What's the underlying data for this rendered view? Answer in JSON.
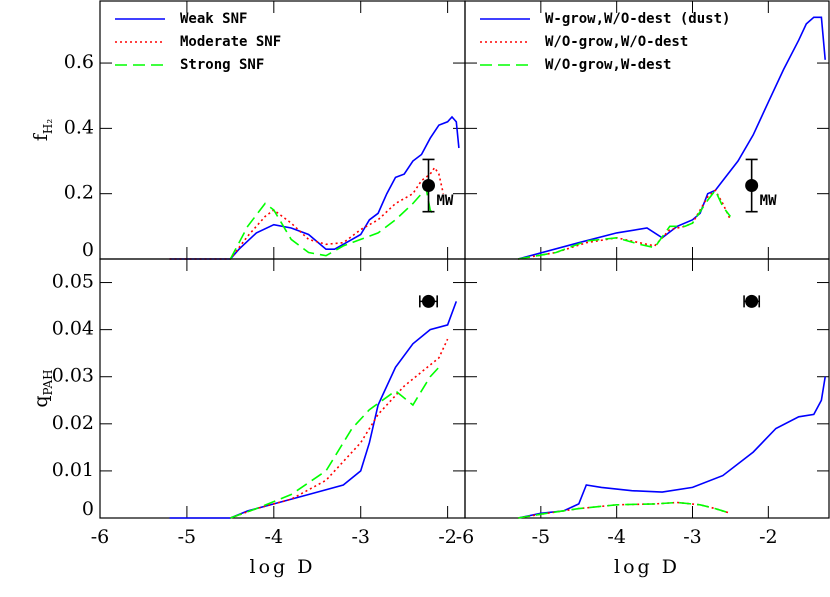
{
  "chart_data": [
    {
      "type": "line",
      "y_label": "f",
      "y_label_sub": "H₂",
      "xlim": [
        -6,
        -1.8
      ],
      "ylim": [
        0,
        0.79
      ],
      "xticks": [
        -6,
        -5,
        -4,
        -3,
        -2
      ],
      "yticks": [
        0,
        0.2,
        0.4,
        0.6
      ],
      "x_tick_labels": false,
      "y_tick_labels": true,
      "legend": "upper left",
      "series": [
        {
          "name": "Weak SNF",
          "color": "#0000ff",
          "style": "solid",
          "x": [
            -5.2,
            -4.5,
            -4.4,
            -4.2,
            -4.0,
            -3.8,
            -3.6,
            -3.4,
            -3.3,
            -3.1,
            -3.0,
            -2.9,
            -2.8,
            -2.7,
            -2.6,
            -2.5,
            -2.4,
            -2.3,
            -2.2,
            -2.1,
            -2.0,
            -1.95,
            -1.9,
            -1.87
          ],
          "values": [
            0,
            0,
            0.03,
            0.08,
            0.105,
            0.095,
            0.075,
            0.03,
            0.03,
            0.06,
            0.075,
            0.12,
            0.14,
            0.2,
            0.25,
            0.26,
            0.3,
            0.32,
            0.37,
            0.41,
            0.42,
            0.435,
            0.42,
            0.34
          ]
        },
        {
          "name": "Moderate SNF",
          "color": "#ff0000",
          "style": "dotted",
          "x": [
            -5.2,
            -4.5,
            -4.3,
            -4.1,
            -4.0,
            -3.8,
            -3.6,
            -3.4,
            -3.2,
            -3.0,
            -2.8,
            -2.6,
            -2.4,
            -2.3,
            -2.2,
            -2.15,
            -2.1,
            -2.05
          ],
          "values": [
            0,
            0,
            0.07,
            0.13,
            0.15,
            0.11,
            0.06,
            0.045,
            0.05,
            0.09,
            0.12,
            0.17,
            0.2,
            0.24,
            0.26,
            0.28,
            0.26,
            0.2
          ]
        },
        {
          "name": "Strong SNF",
          "color": "#00ff00",
          "style": "dashed",
          "x": [
            -4.5,
            -4.3,
            -4.1,
            -4.0,
            -3.8,
            -3.6,
            -3.4,
            -3.2,
            -3.0,
            -2.8,
            -2.6,
            -2.4,
            -2.3,
            -2.25,
            -2.2,
            -2.15
          ],
          "values": [
            0,
            0.1,
            0.17,
            0.15,
            0.06,
            0.02,
            0.01,
            0.04,
            0.06,
            0.08,
            0.12,
            0.17,
            0.2,
            0.22,
            0.15,
            0.13
          ]
        }
      ],
      "reference_point": {
        "x": -2.22,
        "y": 0.225,
        "yerr": 0.08,
        "label": "MW"
      }
    },
    {
      "type": "line",
      "xlim": [
        -6,
        -1.2
      ],
      "ylim": [
        0,
        0.79
      ],
      "xticks": [
        -6,
        -5,
        -4,
        -3,
        -2
      ],
      "yticks": [
        0,
        0.2,
        0.4,
        0.6
      ],
      "x_tick_labels": false,
      "y_tick_labels": false,
      "legend": "upper left",
      "series": [
        {
          "name": "W-grow,W/O-dest (dust)",
          "color": "#0000ff",
          "style": "solid",
          "x": [
            -5.3,
            -4.5,
            -4.0,
            -3.6,
            -3.4,
            -3.2,
            -3.0,
            -2.9,
            -2.8,
            -2.7,
            -2.6,
            -2.4,
            -2.2,
            -2.0,
            -1.8,
            -1.6,
            -1.5,
            -1.4,
            -1.3,
            -1.25
          ],
          "values": [
            0,
            0.05,
            0.08,
            0.095,
            0.065,
            0.1,
            0.12,
            0.14,
            0.2,
            0.21,
            0.24,
            0.3,
            0.38,
            0.48,
            0.58,
            0.67,
            0.72,
            0.74,
            0.74,
            0.61
          ]
        },
        {
          "name": "W/O-grow,W/O-dest",
          "color": "#ff0000",
          "style": "dotted",
          "x": [
            -5.3,
            -4.8,
            -4.4,
            -4.0,
            -3.7,
            -3.5,
            -3.3,
            -3.1,
            -3.0,
            -2.8,
            -2.7,
            -2.6,
            -2.5
          ],
          "values": [
            0,
            0.02,
            0.05,
            0.065,
            0.05,
            0.04,
            0.09,
            0.1,
            0.11,
            0.19,
            0.21,
            0.17,
            0.12
          ]
        },
        {
          "name": "W/O-grow,W-dest",
          "color": "#00ff00",
          "style": "dashed",
          "x": [
            -5.3,
            -4.8,
            -4.4,
            -4.0,
            -3.7,
            -3.5,
            -3.3,
            -3.1,
            -3.0,
            -2.8,
            -2.7,
            -2.6,
            -2.5
          ],
          "values": [
            0,
            0.02,
            0.055,
            0.065,
            0.045,
            0.035,
            0.1,
            0.1,
            0.11,
            0.18,
            0.21,
            0.16,
            0.13
          ]
        }
      ],
      "reference_point": {
        "x": -2.22,
        "y": 0.225,
        "yerr": 0.08,
        "label": "MW"
      }
    },
    {
      "type": "line",
      "y_label": "q",
      "y_label_sub": "PAH",
      "x_label": "log D",
      "xlim": [
        -6,
        -1.8
      ],
      "ylim": [
        0,
        0.055
      ],
      "xticks": [
        -6,
        -5,
        -4,
        -3,
        -2
      ],
      "yticks": [
        0,
        0.01,
        0.02,
        0.03,
        0.04,
        0.05
      ],
      "x_tick_labels": true,
      "y_tick_labels": true,
      "series": [
        {
          "color": "#0000ff",
          "style": "solid",
          "x": [
            -5.2,
            -4.5,
            -4.3,
            -4.0,
            -3.6,
            -3.2,
            -3.0,
            -2.9,
            -2.8,
            -2.6,
            -2.4,
            -2.2,
            -2.0,
            -1.9
          ],
          "values": [
            0,
            0,
            0.0015,
            0.003,
            0.005,
            0.007,
            0.01,
            0.016,
            0.024,
            0.032,
            0.037,
            0.04,
            0.041,
            0.046
          ]
        },
        {
          "color": "#ff0000",
          "style": "dotted",
          "x": [
            -4.5,
            -4.2,
            -3.8,
            -3.4,
            -3.0,
            -2.8,
            -2.5,
            -2.3,
            -2.1,
            -2.0
          ],
          "values": [
            0,
            0.002,
            0.004,
            0.008,
            0.016,
            0.022,
            0.028,
            0.031,
            0.034,
            0.038
          ]
        },
        {
          "color": "#00ff00",
          "style": "dashed",
          "x": [
            -4.5,
            -4.2,
            -3.8,
            -3.4,
            -3.1,
            -2.9,
            -2.6,
            -2.4,
            -2.2,
            -2.1
          ],
          "values": [
            0,
            0.002,
            0.005,
            0.01,
            0.019,
            0.023,
            0.027,
            0.024,
            0.03,
            0.032
          ]
        }
      ],
      "reference_point": {
        "x": -2.22,
        "y": 0.046,
        "xerr": 0.1
      }
    },
    {
      "type": "line",
      "x_label": "log D",
      "xlim": [
        -6,
        -1.2
      ],
      "ylim": [
        0,
        0.055
      ],
      "xticks": [
        -6,
        -5,
        -4,
        -3,
        -2
      ],
      "yticks": [
        0,
        0.01,
        0.02,
        0.03,
        0.04,
        0.05
      ],
      "x_tick_labels": true,
      "y_tick_labels": false,
      "series": [
        {
          "color": "#0000ff",
          "style": "solid",
          "x": [
            -5.3,
            -5.0,
            -4.7,
            -4.5,
            -4.4,
            -4.2,
            -3.8,
            -3.4,
            -3.0,
            -2.6,
            -2.2,
            -1.9,
            -1.6,
            -1.4,
            -1.3,
            -1.25
          ],
          "values": [
            0,
            0.001,
            0.0015,
            0.003,
            0.007,
            0.0065,
            0.0058,
            0.0055,
            0.0065,
            0.009,
            0.014,
            0.019,
            0.0215,
            0.022,
            0.025,
            0.03
          ]
        },
        {
          "color": "#ff0000",
          "style": "dotted",
          "x": [
            -5.3,
            -5.0,
            -4.5,
            -4.0,
            -3.5,
            -3.2,
            -2.9,
            -2.7,
            -2.5
          ],
          "values": [
            0,
            0.0008,
            0.002,
            0.0028,
            0.003,
            0.0033,
            0.0028,
            0.002,
            0.001
          ]
        },
        {
          "color": "#00ff00",
          "style": "dashed",
          "x": [
            -5.3,
            -5.0,
            -4.5,
            -4.0,
            -3.5,
            -3.2,
            -2.9,
            -2.7,
            -2.5
          ],
          "values": [
            0,
            0.0008,
            0.002,
            0.0028,
            0.003,
            0.0033,
            0.0028,
            0.002,
            0.001
          ]
        }
      ],
      "reference_point": {
        "x": -2.22,
        "y": 0.046,
        "xerr": 0.1
      }
    }
  ]
}
